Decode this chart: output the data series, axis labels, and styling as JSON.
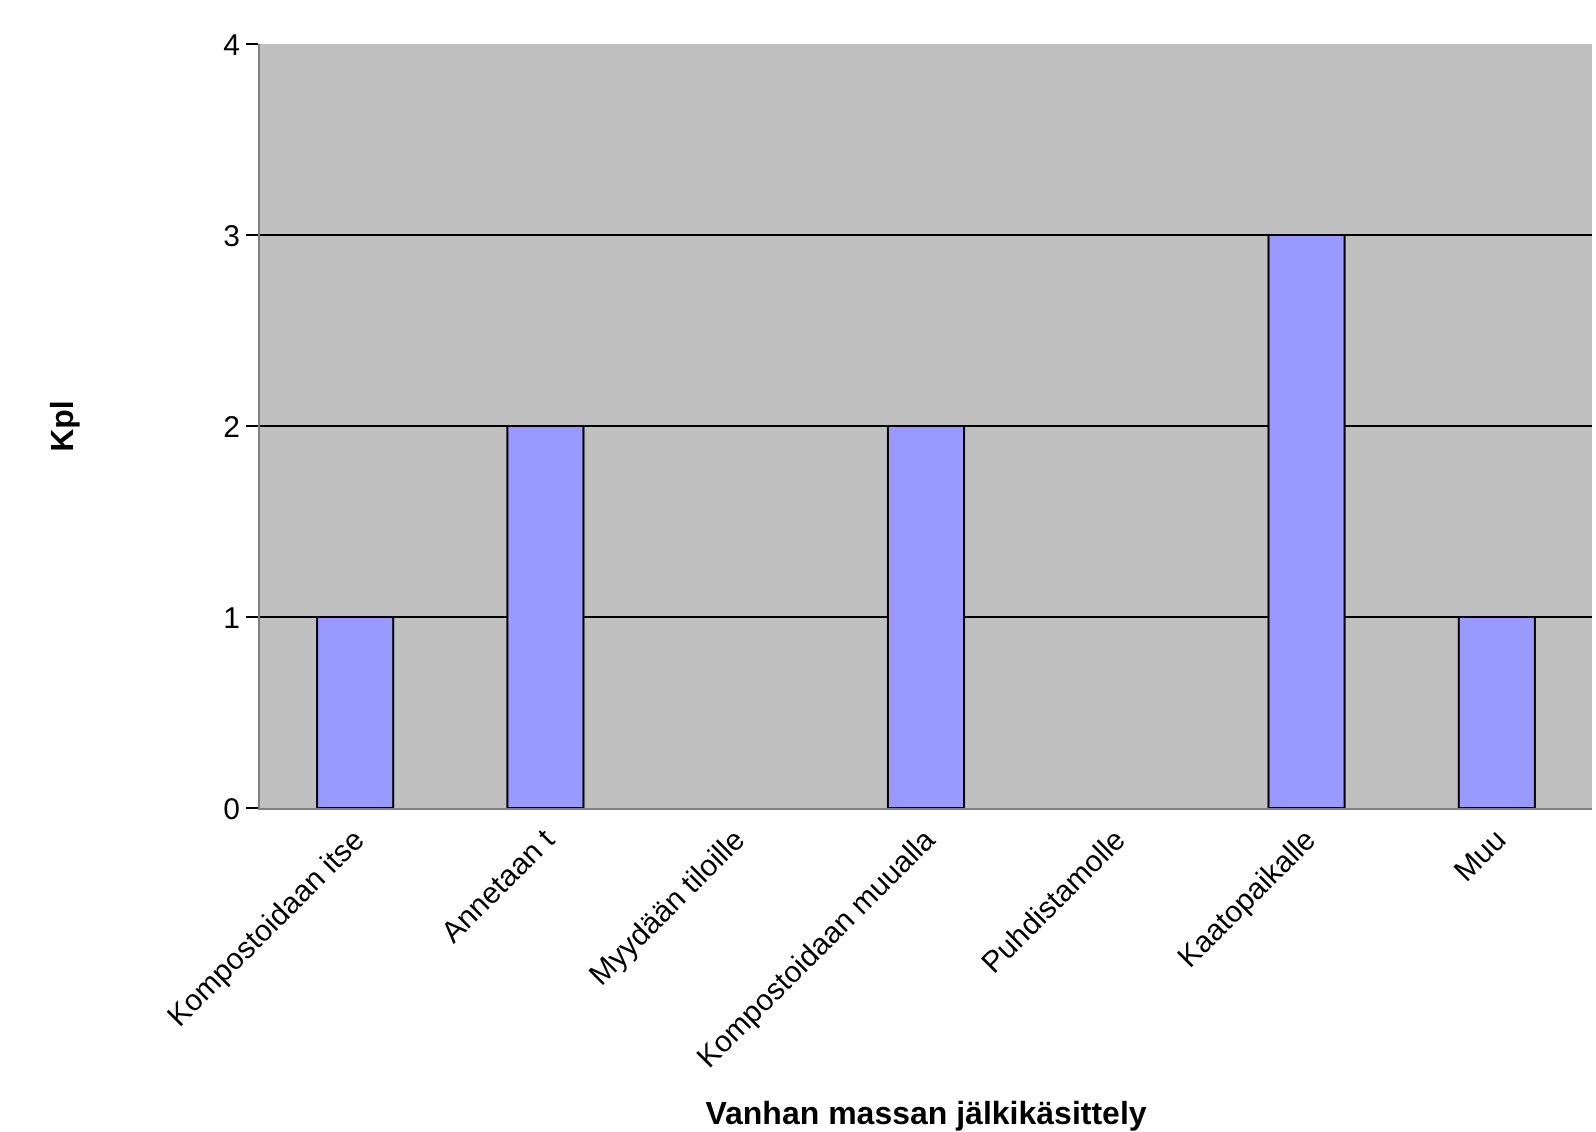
{
  "chart_data": {
    "type": "bar",
    "xlabel": "Vanhan massan jälkikäsittely",
    "ylabel": "Kpl",
    "categories": [
      "Kompostoidaan itse",
      "Annetaan t",
      "Myydään tiloille",
      "Kompostoidaan muualla",
      "Puhdistamolle",
      "Kaatopaikalle",
      "Muu"
    ],
    "values": [
      1,
      2,
      0,
      2,
      0,
      3,
      1
    ],
    "color": "#9999ff",
    "ylim": [
      0,
      4
    ],
    "yticks": [
      0,
      1,
      2,
      3,
      4
    ],
    "grid": "y",
    "legend": false
  }
}
